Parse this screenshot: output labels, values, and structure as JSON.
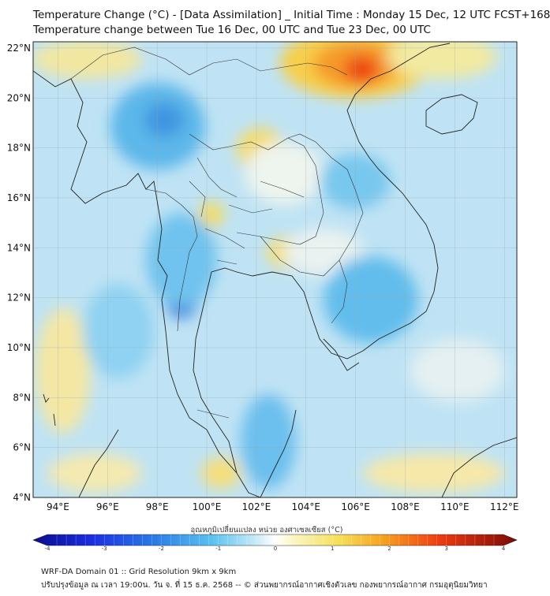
{
  "title_line1": "Temperature Change (°C) - [Data Assimilation] _ Initial Time : Monday 15 Dec, 12 UTC FCST+168",
  "title_line2": "Temperature change between Tue 16 Dec, 00 UTC and Tue 23 Dec, 00 UTC",
  "lat_labels": [
    "22°N",
    "20°N",
    "18°N",
    "16°N",
    "14°N",
    "12°N",
    "10°N",
    "8°N",
    "6°N",
    "4°N"
  ],
  "lat_values": [
    22,
    20,
    18,
    16,
    14,
    12,
    10,
    8,
    6,
    4
  ],
  "lon_labels": [
    "94°E",
    "96°E",
    "98°E",
    "100°E",
    "102°E",
    "104°E",
    "106°E",
    "108°E",
    "110°E",
    "112°E"
  ],
  "lon_values": [
    94,
    96,
    98,
    100,
    102,
    104,
    106,
    108,
    110,
    112
  ],
  "map_extent": {
    "lon_min": 93,
    "lon_max": 112.5,
    "lat_min": 4,
    "lat_max": 22.25
  },
  "colorbar": {
    "label": "อุณหภูมิเปลี่ยนแปลง หน่วย องศาเซลเซียส (°C)",
    "ticks": [
      "-4",
      "-3",
      "-2",
      "-1",
      "0",
      "1",
      "2",
      "3",
      "4"
    ],
    "tick_values": [
      -4,
      -3,
      -2,
      -1,
      0,
      1,
      2,
      3,
      4
    ],
    "min": -4,
    "max": 4
  },
  "footer_line1": "WRF-DA Domain 01 :: Grid Resolution 9km x 9km",
  "footer_line2": "ปรับปรุงข้อมูล ณ เวลา 19:00น. วัน จ. ที่ 15 ธ.ค. 2568 -- © ส่วนพยากรณ์อากาศเชิงตัวเลข กองพยากรณ์อากาศ กรมอุตุนิยมวิทยา",
  "colors": {
    "background_field": "#bfe3f4",
    "coastline": "#222222",
    "warm_max": "#f03c14",
    "cold_max": "#2a74d8"
  }
}
